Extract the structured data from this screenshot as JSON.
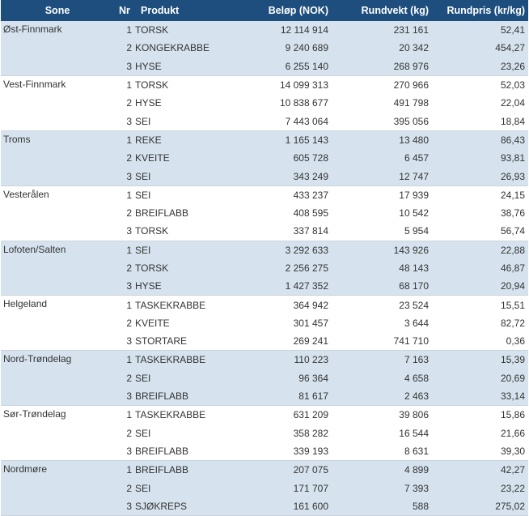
{
  "headers": {
    "sone": "Sone",
    "nr": "Nr",
    "produkt": "Produkt",
    "belop": "Beløp (NOK)",
    "rundvekt": "Rundvekt (kg)",
    "rundpris": "Rundpris (kr/kg)"
  },
  "groups": [
    {
      "sone": "Øst-Finnmark",
      "rows": [
        {
          "nr": "1",
          "produkt": "TORSK",
          "belop": "12 114 914",
          "rundvekt": "231 161",
          "rundpris": "52,41"
        },
        {
          "nr": "2",
          "produkt": "KONGEKRABBE",
          "belop": "9 240 689",
          "rundvekt": "20 342",
          "rundpris": "454,27"
        },
        {
          "nr": "3",
          "produkt": "HYSE",
          "belop": "6 255 140",
          "rundvekt": "268 976",
          "rundpris": "23,26"
        }
      ]
    },
    {
      "sone": "Vest-Finnmark",
      "rows": [
        {
          "nr": "1",
          "produkt": "TORSK",
          "belop": "14 099 313",
          "rundvekt": "270 966",
          "rundpris": "52,03"
        },
        {
          "nr": "2",
          "produkt": "HYSE",
          "belop": "10 838 677",
          "rundvekt": "491 798",
          "rundpris": "22,04"
        },
        {
          "nr": "3",
          "produkt": "SEI",
          "belop": "7 443 064",
          "rundvekt": "395 056",
          "rundpris": "18,84"
        }
      ]
    },
    {
      "sone": "Troms",
      "rows": [
        {
          "nr": "1",
          "produkt": "REKE",
          "belop": "1 165 143",
          "rundvekt": "13 480",
          "rundpris": "86,43"
        },
        {
          "nr": "2",
          "produkt": "KVEITE",
          "belop": "605 728",
          "rundvekt": "6 457",
          "rundpris": "93,81"
        },
        {
          "nr": "3",
          "produkt": "SEI",
          "belop": "343 249",
          "rundvekt": "12 747",
          "rundpris": "26,93"
        }
      ]
    },
    {
      "sone": "Vesterålen",
      "rows": [
        {
          "nr": "1",
          "produkt": "SEI",
          "belop": "433 237",
          "rundvekt": "17 939",
          "rundpris": "24,15"
        },
        {
          "nr": "2",
          "produkt": "BREIFLABB",
          "belop": "408 595",
          "rundvekt": "10 542",
          "rundpris": "38,76"
        },
        {
          "nr": "3",
          "produkt": "TORSK",
          "belop": "337 814",
          "rundvekt": "5 954",
          "rundpris": "56,74"
        }
      ]
    },
    {
      "sone": "Lofoten/Salten",
      "rows": [
        {
          "nr": "1",
          "produkt": "SEI",
          "belop": "3 292 633",
          "rundvekt": "143 926",
          "rundpris": "22,88"
        },
        {
          "nr": "2",
          "produkt": "TORSK",
          "belop": "2 256 275",
          "rundvekt": "48 143",
          "rundpris": "46,87"
        },
        {
          "nr": "3",
          "produkt": "HYSE",
          "belop": "1 427 352",
          "rundvekt": "68 170",
          "rundpris": "20,94"
        }
      ]
    },
    {
      "sone": "Helgeland",
      "rows": [
        {
          "nr": "1",
          "produkt": "TASKEKRABBE",
          "belop": "364 942",
          "rundvekt": "23 524",
          "rundpris": "15,51"
        },
        {
          "nr": "2",
          "produkt": "KVEITE",
          "belop": "301 457",
          "rundvekt": "3 644",
          "rundpris": "82,72"
        },
        {
          "nr": "3",
          "produkt": "STORTARE",
          "belop": "269 241",
          "rundvekt": "741 710",
          "rundpris": "0,36"
        }
      ]
    },
    {
      "sone": "Nord-Trøndelag",
      "rows": [
        {
          "nr": "1",
          "produkt": "TASKEKRABBE",
          "belop": "110 223",
          "rundvekt": "7 163",
          "rundpris": "15,39"
        },
        {
          "nr": "2",
          "produkt": "SEI",
          "belop": "96 364",
          "rundvekt": "4 658",
          "rundpris": "20,69"
        },
        {
          "nr": "3",
          "produkt": "BREIFLABB",
          "belop": "81 617",
          "rundvekt": "2 463",
          "rundpris": "33,14"
        }
      ]
    },
    {
      "sone": "Sør-Trøndelag",
      "rows": [
        {
          "nr": "1",
          "produkt": "TASKEKRABBE",
          "belop": "631 209",
          "rundvekt": "39 806",
          "rundpris": "15,86"
        },
        {
          "nr": "2",
          "produkt": "SEI",
          "belop": "358 282",
          "rundvekt": "16 544",
          "rundpris": "21,66"
        },
        {
          "nr": "3",
          "produkt": "BREIFLABB",
          "belop": "339 193",
          "rundvekt": "8 631",
          "rundpris": "39,30"
        }
      ]
    },
    {
      "sone": "Nordmøre",
      "rows": [
        {
          "nr": "1",
          "produkt": "BREIFLABB",
          "belop": "207 075",
          "rundvekt": "4 899",
          "rundpris": "42,27"
        },
        {
          "nr": "2",
          "produkt": "SEI",
          "belop": "171 707",
          "rundvekt": "7 393",
          "rundpris": "23,22"
        },
        {
          "nr": "3",
          "produkt": "SJØKREPS",
          "belop": "161 600",
          "rundvekt": "588",
          "rundpris": "275,02"
        }
      ]
    }
  ]
}
